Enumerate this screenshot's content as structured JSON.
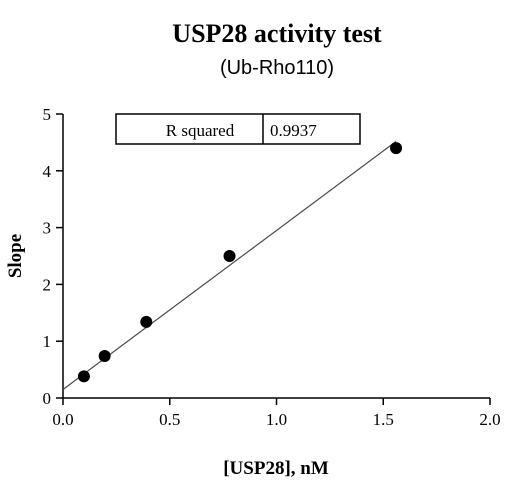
{
  "chart_data": {
    "type": "scatter",
    "title": "USP28 activity test",
    "subtitle": "(Ub-Rho110)",
    "xlabel": "[USP28], nM",
    "ylabel": "Slope",
    "xlim": [
      0,
      2.0
    ],
    "ylim": [
      0,
      5
    ],
    "x_ticks": [
      "0.0",
      "0.5",
      "1.0",
      "1.5",
      "2.0"
    ],
    "y_ticks": [
      "0",
      "1",
      "2",
      "3",
      "4",
      "5"
    ],
    "series": [
      {
        "x": [
          0.098,
          0.195,
          0.39,
          0.78,
          1.56
        ],
        "y": [
          0.38,
          0.74,
          1.34,
          2.5,
          4.4
        ]
      }
    ],
    "fit_line": {
      "type": "linear",
      "x_range": [
        0,
        1.56
      ],
      "intercept": 0.15,
      "slope": 2.8
    },
    "stats_table": {
      "label": "R squared",
      "value": "0.9937"
    },
    "marker_color": "#000000",
    "line_color": "#4a4a4a",
    "grid": false
  }
}
